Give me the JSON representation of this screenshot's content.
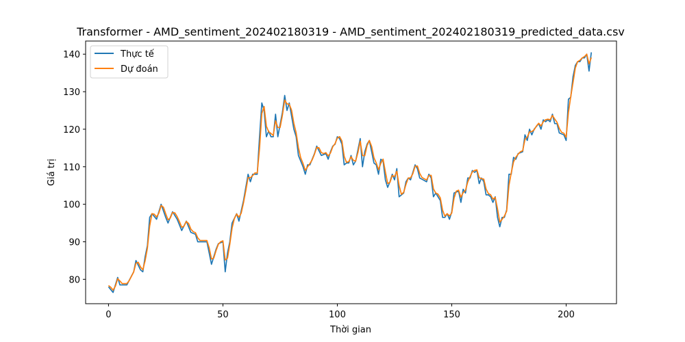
{
  "chart_data": {
    "type": "line",
    "title": "Transformer - AMD_sentiment_202402180319 - AMD_sentiment_202402180319_predicted_data.csv",
    "xlabel": "Thời gian",
    "ylabel": "Giá trị",
    "xlim": [
      -10,
      222
    ],
    "ylim": [
      73.5,
      143.5
    ],
    "xticks": [
      0,
      50,
      100,
      150,
      200
    ],
    "yticks": [
      80,
      90,
      100,
      110,
      120,
      130,
      140
    ],
    "legend": "top-left",
    "grid": false,
    "colors": {
      "actual": "#1f77b4",
      "predicted": "#ff7f0e"
    },
    "anchors": [
      [
        0,
        78
      ],
      [
        2,
        76.5
      ],
      [
        4,
        80.5
      ],
      [
        5,
        78.5
      ],
      [
        8,
        78.5
      ],
      [
        11,
        82
      ],
      [
        12,
        85
      ],
      [
        14,
        82.5
      ],
      [
        15,
        82
      ],
      [
        16,
        86
      ],
      [
        17,
        89
      ],
      [
        18,
        96.5
      ],
      [
        19,
        97.5
      ],
      [
        21,
        96
      ],
      [
        23,
        100
      ],
      [
        25,
        96.5
      ],
      [
        26,
        95
      ],
      [
        28,
        98
      ],
      [
        30,
        96
      ],
      [
        32,
        93
      ],
      [
        34,
        95.5
      ],
      [
        36,
        92.5
      ],
      [
        38,
        92
      ],
      [
        39,
        90
      ],
      [
        43,
        90
      ],
      [
        45,
        84
      ],
      [
        47,
        88
      ],
      [
        48,
        89.5
      ],
      [
        50,
        90
      ],
      [
        51,
        82
      ],
      [
        52,
        87
      ],
      [
        53,
        90
      ],
      [
        54,
        95
      ],
      [
        56,
        97.5
      ],
      [
        57,
        95.5
      ],
      [
        59,
        101
      ],
      [
        61,
        108
      ],
      [
        62,
        106
      ],
      [
        63,
        108
      ],
      [
        65,
        108
      ],
      [
        66,
        118
      ],
      [
        67,
        127
      ],
      [
        68,
        125
      ],
      [
        69,
        118
      ],
      [
        70,
        119.5
      ],
      [
        71,
        118
      ],
      [
        72,
        118
      ],
      [
        73,
        124
      ],
      [
        74,
        118
      ],
      [
        76,
        124.5
      ],
      [
        77,
        129
      ],
      [
        78,
        125
      ],
      [
        79,
        127
      ],
      [
        81,
        120
      ],
      [
        82,
        118
      ],
      [
        83,
        113
      ],
      [
        85,
        110
      ],
      [
        86,
        108
      ],
      [
        87,
        110.5
      ],
      [
        88,
        110.5
      ],
      [
        90,
        113.5
      ],
      [
        91,
        115.5
      ],
      [
        93,
        113
      ],
      [
        95,
        113.5
      ],
      [
        96,
        112
      ],
      [
        97,
        114
      ],
      [
        98,
        115.5
      ],
      [
        99,
        116
      ],
      [
        100,
        118
      ],
      [
        101,
        117.5
      ],
      [
        102,
        116
      ],
      [
        103,
        110.5
      ],
      [
        104,
        111
      ],
      [
        105,
        111
      ],
      [
        106,
        113
      ],
      [
        107,
        110.5
      ],
      [
        108,
        111.5
      ],
      [
        110,
        117.5
      ],
      [
        111,
        110
      ],
      [
        112,
        114
      ],
      [
        113,
        116
      ],
      [
        114,
        117
      ],
      [
        116,
        111
      ],
      [
        117,
        110.5
      ],
      [
        118,
        108
      ],
      [
        119,
        112
      ],
      [
        120,
        111.5
      ],
      [
        121,
        106.5
      ],
      [
        122,
        104.5
      ],
      [
        123,
        106
      ],
      [
        124,
        108
      ],
      [
        125,
        106.5
      ],
      [
        126,
        109.5
      ],
      [
        127,
        102
      ],
      [
        129,
        103
      ],
      [
        130,
        106
      ],
      [
        131,
        107
      ],
      [
        132,
        106.5
      ],
      [
        134,
        110.5
      ],
      [
        135,
        109.5
      ],
      [
        136,
        107
      ],
      [
        139,
        106
      ],
      [
        140,
        108
      ],
      [
        141,
        107
      ],
      [
        142,
        102
      ],
      [
        143,
        103
      ],
      [
        144,
        102
      ],
      [
        145,
        101
      ],
      [
        146,
        96.5
      ],
      [
        147,
        96.5
      ],
      [
        148,
        97.5
      ],
      [
        149,
        96
      ],
      [
        150,
        98
      ],
      [
        151,
        103
      ],
      [
        153,
        103.5
      ],
      [
        154,
        100.5
      ],
      [
        155,
        104
      ],
      [
        156,
        103
      ],
      [
        157,
        107
      ],
      [
        158,
        107
      ],
      [
        159,
        109
      ],
      [
        160,
        108.5
      ],
      [
        161,
        109
      ],
      [
        162,
        105.5
      ],
      [
        163,
        107
      ],
      [
        164,
        106
      ],
      [
        165,
        102.5
      ],
      [
        166,
        102.5
      ],
      [
        167,
        102
      ],
      [
        168,
        100.5
      ],
      [
        169,
        102
      ],
      [
        170,
        96.5
      ],
      [
        171,
        94
      ],
      [
        172,
        96.5
      ],
      [
        173,
        96.5
      ],
      [
        174,
        98.5
      ],
      [
        175,
        108
      ],
      [
        176,
        108
      ],
      [
        177,
        112.5
      ],
      [
        178,
        112
      ],
      [
        179,
        113.5
      ],
      [
        181,
        114
      ],
      [
        182,
        118.5
      ],
      [
        183,
        117
      ],
      [
        184,
        120
      ],
      [
        185,
        118.5
      ],
      [
        186,
        120
      ],
      [
        188,
        121.5
      ],
      [
        189,
        120
      ],
      [
        190,
        122.5
      ],
      [
        191,
        122
      ],
      [
        192,
        122.5
      ],
      [
        193,
        122
      ],
      [
        194,
        124
      ],
      [
        195,
        121.5
      ],
      [
        196,
        121.5
      ],
      [
        197,
        119
      ],
      [
        199,
        118.5
      ],
      [
        200,
        117
      ],
      [
        201,
        128
      ],
      [
        202,
        128.5
      ],
      [
        203,
        134
      ],
      [
        204,
        137
      ],
      [
        205,
        138
      ],
      [
        206,
        138
      ],
      [
        207,
        139
      ],
      [
        208,
        139
      ],
      [
        209,
        140
      ],
      [
        210,
        135.5
      ],
      [
        211,
        140.5
      ]
    ],
    "series": [
      {
        "name": "Thực tế",
        "key": "actual"
      },
      {
        "name": "Dự đoán",
        "key": "predicted"
      }
    ]
  }
}
